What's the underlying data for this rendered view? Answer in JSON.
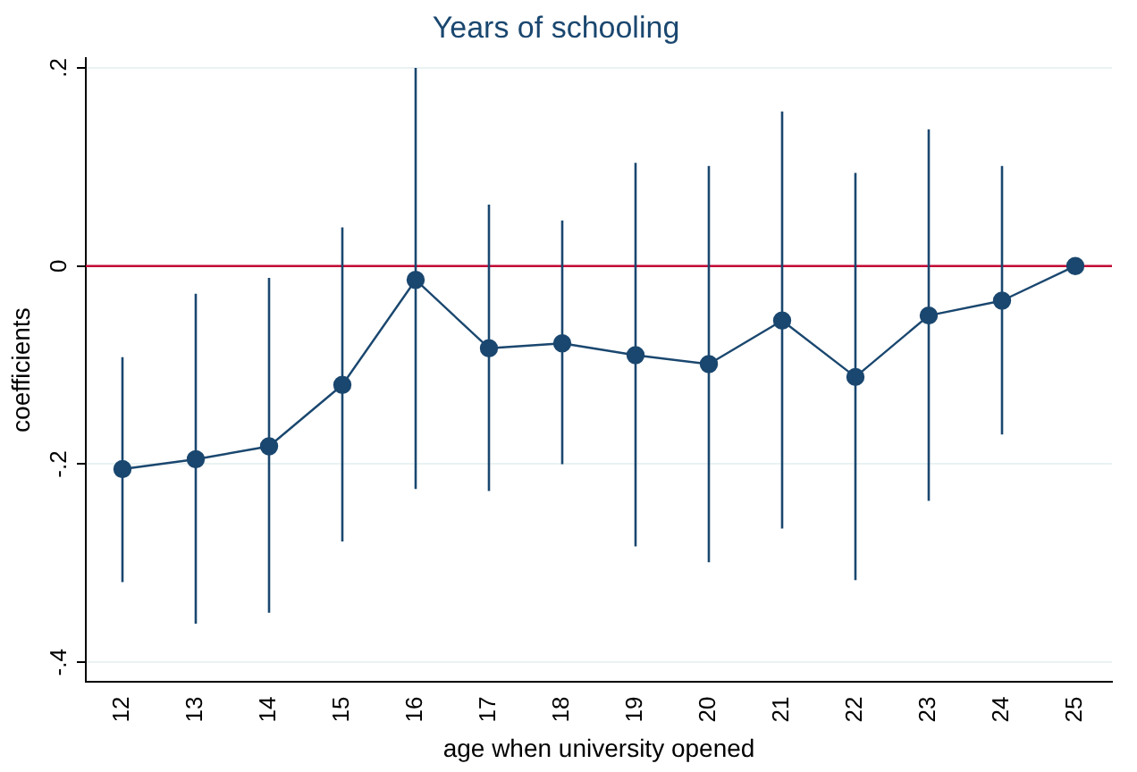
{
  "chart_data": {
    "type": "line",
    "title": "Years of schooling",
    "xlabel": "age when university opened",
    "ylabel": "coefficients",
    "categories": [
      "12",
      "13",
      "14",
      "15",
      "16",
      "17",
      "18",
      "19",
      "20",
      "21",
      "22",
      "23",
      "24",
      "25"
    ],
    "series": [
      {
        "color": "#1a476f",
        "values": [
          -0.205,
          -0.195,
          -0.182,
          -0.12,
          -0.014,
          -0.083,
          -0.078,
          -0.09,
          -0.099,
          -0.055,
          -0.112,
          -0.05,
          -0.035,
          0
        ],
        "errors": [
          [
            -0.319,
            -0.092
          ],
          [
            -0.361,
            -0.028
          ],
          [
            -0.35,
            -0.012
          ],
          [
            -0.278,
            0.039
          ],
          [
            -0.225,
            0.2
          ],
          [
            -0.227,
            0.062
          ],
          [
            -0.2,
            0.046
          ],
          [
            -0.283,
            0.104
          ],
          [
            -0.299,
            0.101
          ],
          [
            -0.265,
            0.156
          ],
          [
            -0.317,
            0.094
          ],
          [
            -0.237,
            0.138
          ],
          [
            -0.17,
            0.101
          ],
          null
        ]
      }
    ],
    "ylim": [
      -0.42,
      0.21
    ],
    "yticks": [
      {
        "value": -0.4,
        "label": "-.4"
      },
      {
        "value": -0.2,
        "label": "-.2"
      },
      {
        "value": 0,
        "label": "0"
      },
      {
        "value": 0.2,
        "label": ".2"
      }
    ],
    "ref_lines": [
      {
        "axis": "y",
        "value": 0,
        "color": "#c10534"
      }
    ],
    "grid": "y",
    "marker": "circle",
    "legend": false
  }
}
